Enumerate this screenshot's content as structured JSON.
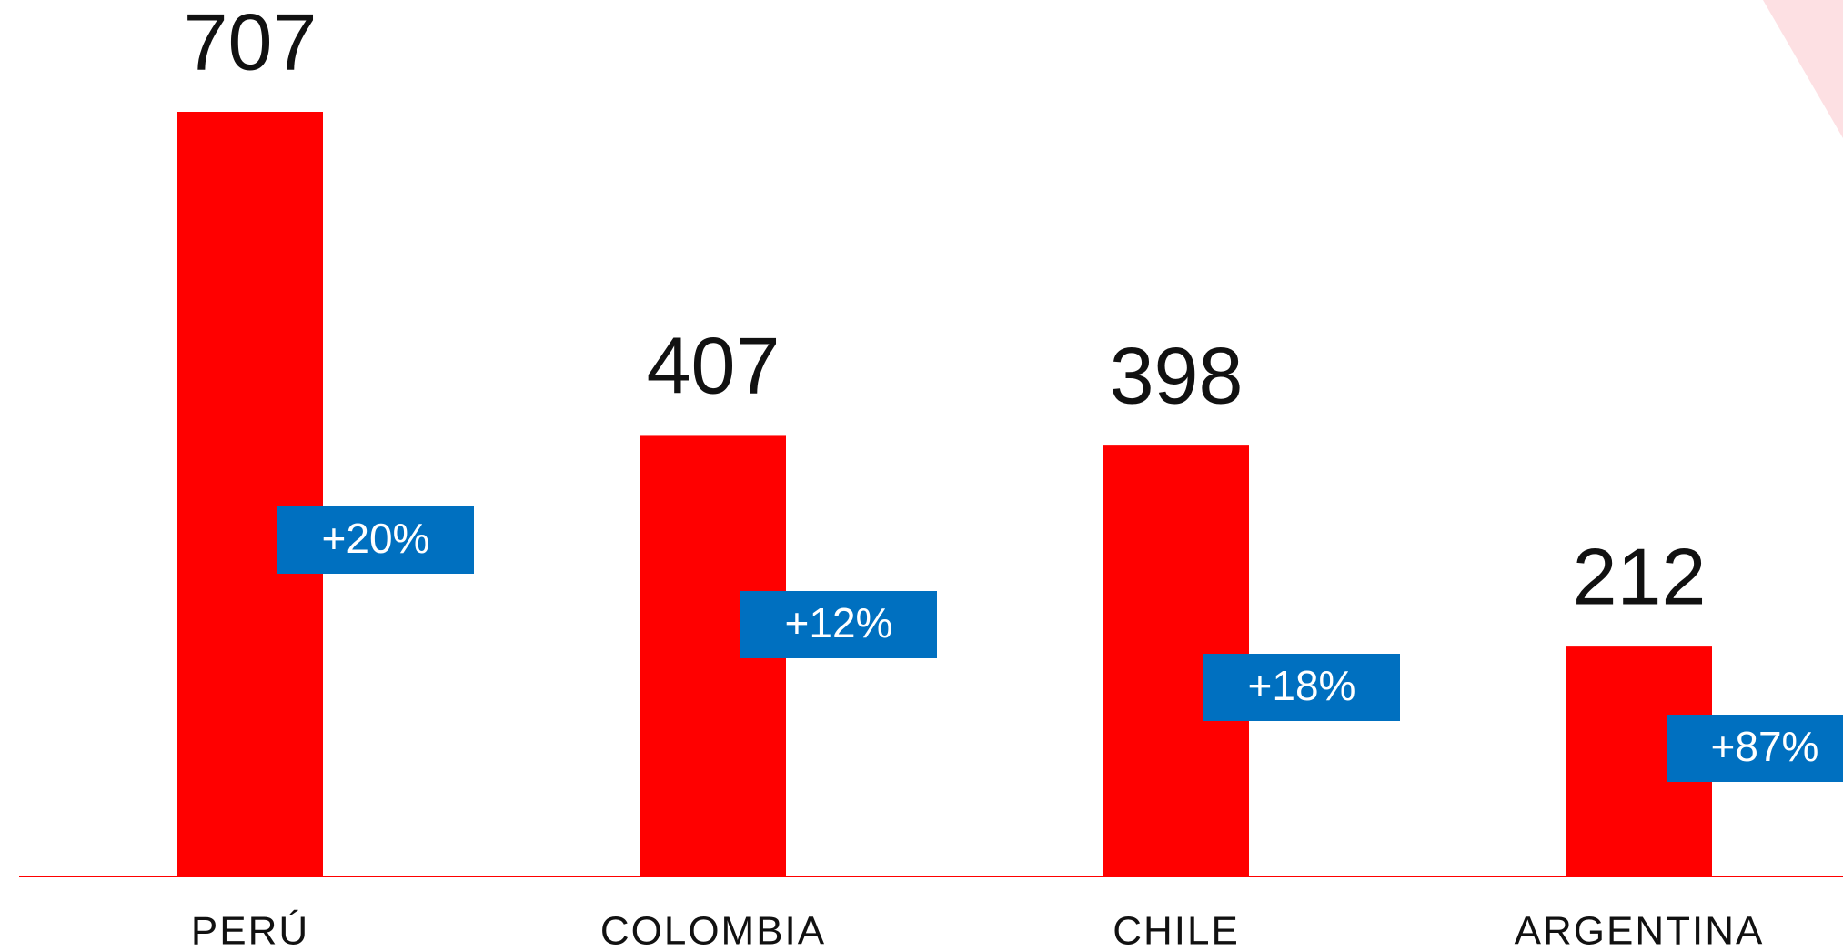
{
  "chart_data": {
    "type": "bar",
    "categories": [
      "PERÚ",
      "COLOMBIA",
      "CHILE",
      "ARGENTINA"
    ],
    "values": [
      707,
      407,
      398,
      212
    ],
    "annotations": [
      "+20%",
      "+12%",
      "+18%",
      "+87%"
    ],
    "color": "#ff0000",
    "annotation_color": "#0070c0"
  }
}
